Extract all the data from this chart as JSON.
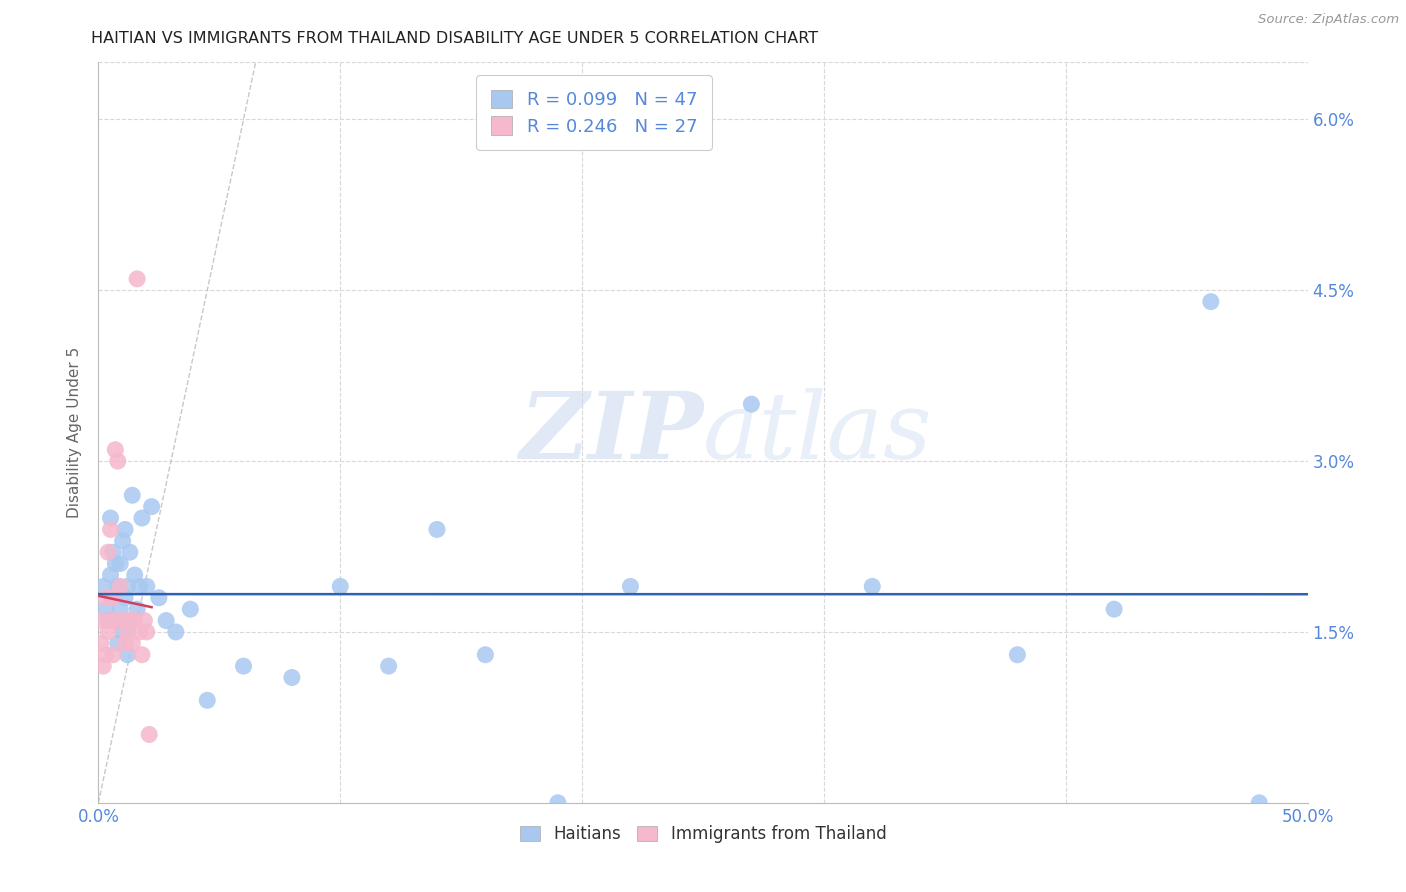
{
  "title": "HAITIAN VS IMMIGRANTS FROM THAILAND DISABILITY AGE UNDER 5 CORRELATION CHART",
  "source": "Source: ZipAtlas.com",
  "ylabel": "Disability Age Under 5",
  "watermark_zip": "ZIP",
  "watermark_atlas": "atlas",
  "xlim": [
    0.0,
    0.5
  ],
  "ylim": [
    0.0,
    0.065
  ],
  "xticks": [
    0.0,
    0.1,
    0.2,
    0.3,
    0.4,
    0.5
  ],
  "xticklabels": [
    "0.0%",
    "",
    "",
    "",
    "",
    "50.0%"
  ],
  "yticks": [
    0.0,
    0.015,
    0.03,
    0.045,
    0.06
  ],
  "right_yticklabels": [
    "",
    "1.5%",
    "3.0%",
    "4.5%",
    "6.0%"
  ],
  "legend_r_label1": "R = 0.099   N = 47",
  "legend_r_label2": "R = 0.246   N = 27",
  "legend_labels": [
    "Haitians",
    "Immigrants from Thailand"
  ],
  "haiti_color": "#a8c8f0",
  "thailand_color": "#f5b8cc",
  "haiti_line_color": "#3060b0",
  "thailand_line_color": "#d04060",
  "diagonal_color": "#c8c8c8",
  "background_color": "#ffffff",
  "grid_color": "#d8d8d8",
  "title_color": "#222222",
  "tick_color": "#5588dd",
  "ylabel_color": "#666666",
  "haiti_x": [
    0.002,
    0.003,
    0.004,
    0.005,
    0.005,
    0.006,
    0.006,
    0.007,
    0.007,
    0.008,
    0.008,
    0.009,
    0.009,
    0.01,
    0.01,
    0.011,
    0.011,
    0.012,
    0.012,
    0.013,
    0.013,
    0.014,
    0.015,
    0.016,
    0.017,
    0.018,
    0.02,
    0.022,
    0.025,
    0.028,
    0.032,
    0.038,
    0.045,
    0.06,
    0.08,
    0.1,
    0.12,
    0.14,
    0.16,
    0.19,
    0.22,
    0.27,
    0.32,
    0.38,
    0.42,
    0.46,
    0.48
  ],
  "haiti_y": [
    0.019,
    0.017,
    0.016,
    0.02,
    0.025,
    0.018,
    0.022,
    0.016,
    0.021,
    0.014,
    0.019,
    0.017,
    0.021,
    0.015,
    0.023,
    0.018,
    0.024,
    0.013,
    0.019,
    0.016,
    0.022,
    0.027,
    0.02,
    0.017,
    0.019,
    0.025,
    0.019,
    0.026,
    0.018,
    0.016,
    0.015,
    0.017,
    0.009,
    0.012,
    0.011,
    0.019,
    0.012,
    0.024,
    0.013,
    0.0,
    0.019,
    0.035,
    0.019,
    0.013,
    0.017,
    0.044,
    0.0
  ],
  "thailand_x": [
    0.001,
    0.001,
    0.002,
    0.003,
    0.003,
    0.004,
    0.004,
    0.005,
    0.005,
    0.006,
    0.006,
    0.007,
    0.007,
    0.008,
    0.009,
    0.01,
    0.011,
    0.012,
    0.013,
    0.014,
    0.015,
    0.016,
    0.017,
    0.018,
    0.019,
    0.02,
    0.021
  ],
  "thailand_y": [
    0.014,
    0.016,
    0.012,
    0.018,
    0.013,
    0.015,
    0.022,
    0.016,
    0.024,
    0.013,
    0.018,
    0.031,
    0.016,
    0.03,
    0.019,
    0.016,
    0.014,
    0.015,
    0.016,
    0.014,
    0.016,
    0.046,
    0.015,
    0.013,
    0.016,
    0.015,
    0.006
  ]
}
